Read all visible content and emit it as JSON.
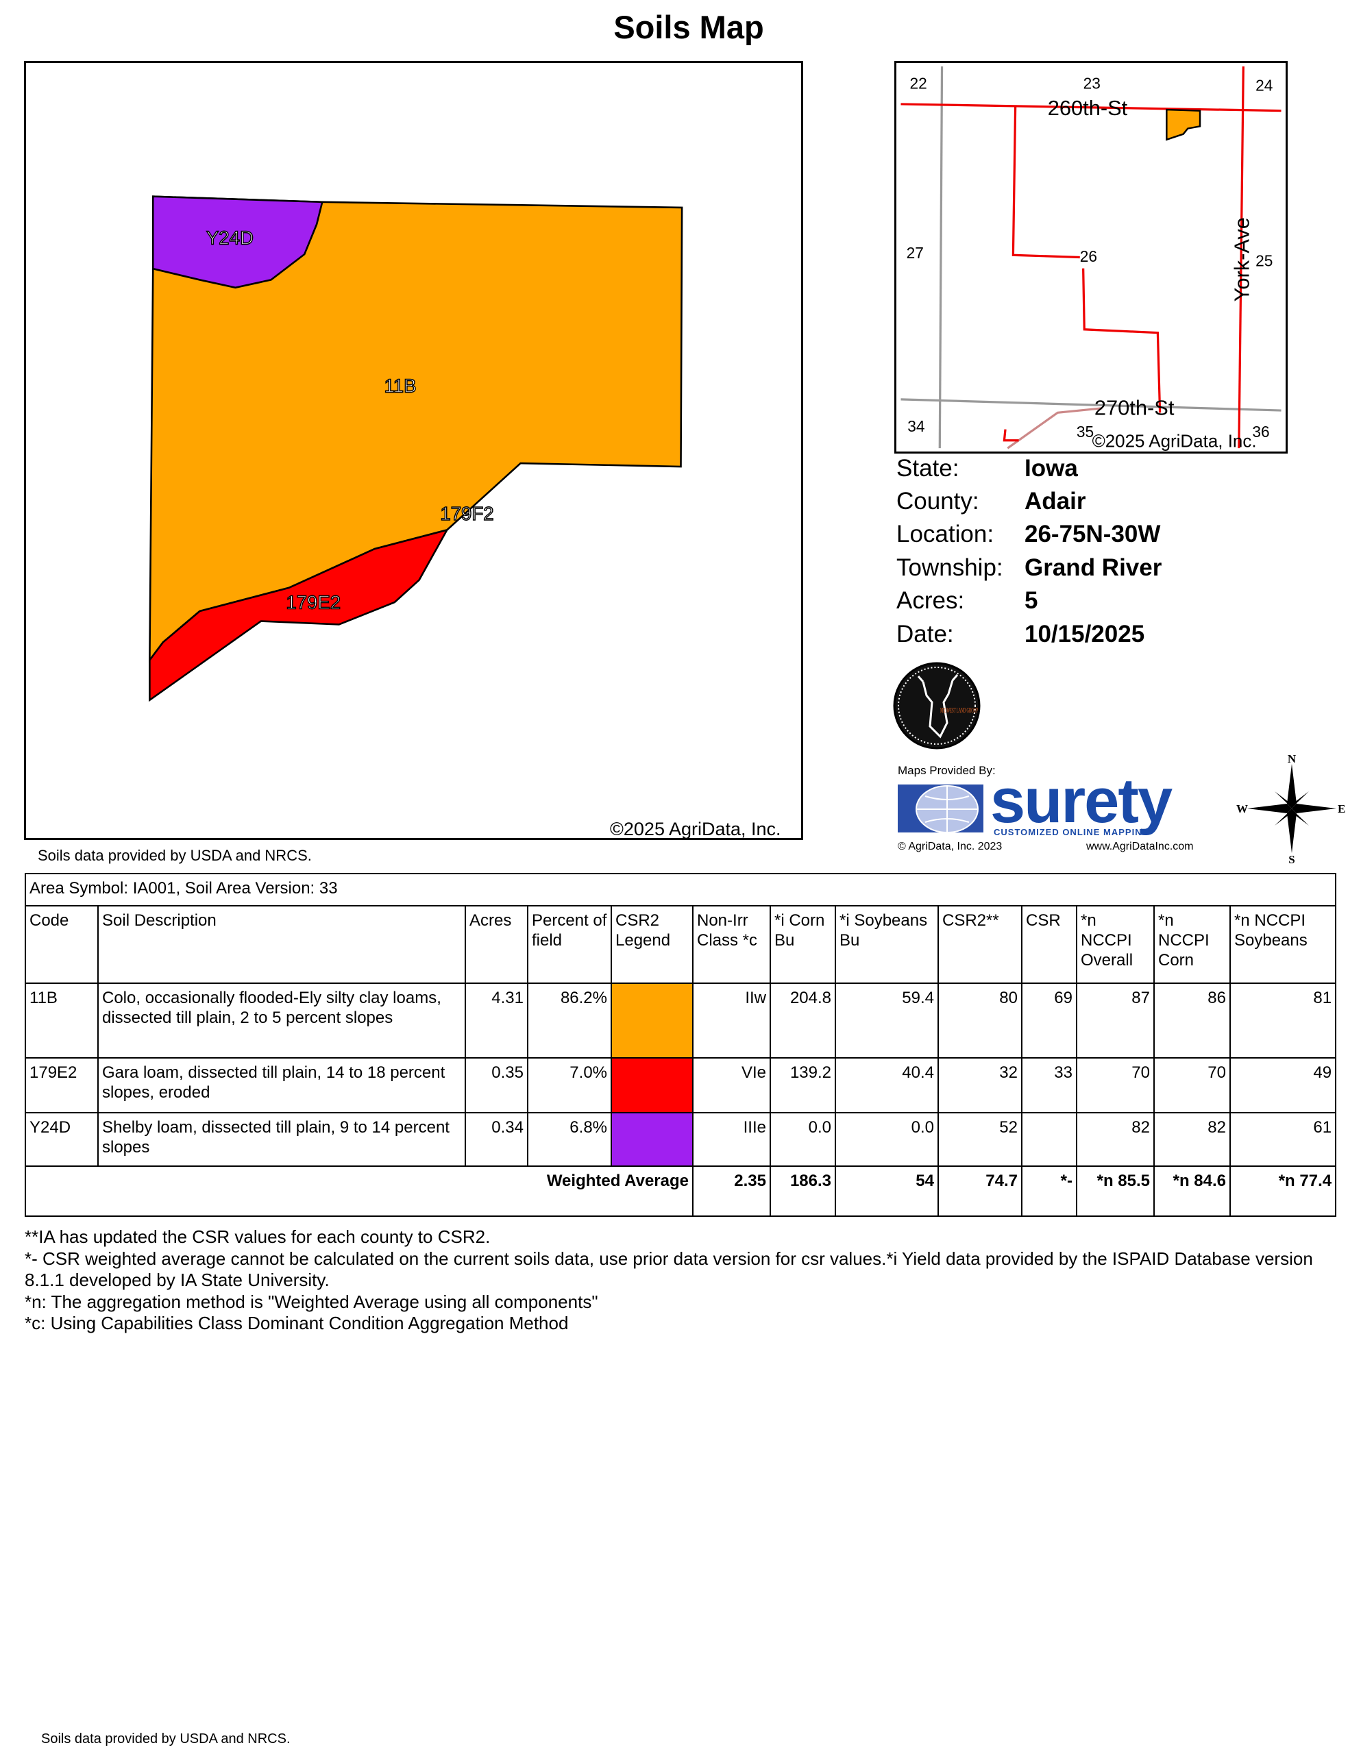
{
  "title": "Soils Map",
  "main_map": {
    "copyright": "©2025 AgriData, Inc.",
    "source_note": "Soils data provided by USDA and NRCS.",
    "labels": [
      "Y24D",
      "11B",
      "179F2",
      "179E2"
    ]
  },
  "inset_map": {
    "sections": [
      "22",
      "23",
      "24",
      "27",
      "26",
      "25",
      "34",
      "35",
      "36"
    ],
    "roads": [
      "260th-St",
      "270th-St",
      "York-Ave"
    ],
    "copyright": "©2025 AgriData, Inc."
  },
  "info": [
    {
      "label": "State:",
      "value": "Iowa"
    },
    {
      "label": "County:",
      "value": "Adair"
    },
    {
      "label": "Location:",
      "value": "26-75N-30W"
    },
    {
      "label": "Township:",
      "value": "Grand River"
    },
    {
      "label": "Acres:",
      "value": "5"
    },
    {
      "label": "Date:",
      "value": "10/15/2025"
    }
  ],
  "logos": {
    "midwest": "MIDWEST LAND GROUP",
    "provided_by": "Maps Provided By:",
    "surety": "surety",
    "surety_tagline": "CUSTOMIZED ONLINE MAPPING",
    "agridata_copy": "© AgriData, Inc. 2023",
    "agridata_url": "www.AgriDataInc.com"
  },
  "compass": {
    "n": "N",
    "s": "S",
    "e": "E",
    "w": "W"
  },
  "table": {
    "area_symbol": "Area Symbol: IA001, Soil Area Version: 33",
    "headers": [
      "Code",
      "Soil Description",
      "Acres",
      "Percent of field",
      "CSR2 Legend",
      "Non-Irr Class *c",
      "*i Corn Bu",
      "*i Soybeans Bu",
      "CSR2**",
      "CSR",
      "*n NCCPI Overall",
      "*n NCCPI Corn",
      "*n NCCPI Soybeans"
    ],
    "rows": [
      {
        "code": "11B",
        "desc": "Colo, occasionally flooded-Ely silty clay loams, dissected till plain, 2 to 5 percent slopes",
        "acres": "4.31",
        "pct": "86.2%",
        "color": "#FFA500",
        "class": "IIw",
        "corn": "204.8",
        "soy": "59.4",
        "csr2": "80",
        "csr": "69",
        "nccpi": "87",
        "nccpi_corn": "86",
        "nccpi_soy": "81"
      },
      {
        "code": "179E2",
        "desc": "Gara loam, dissected till plain, 14 to 18 percent slopes, eroded",
        "acres": "0.35",
        "pct": "7.0%",
        "color": "#FF0000",
        "class": "VIe",
        "corn": "139.2",
        "soy": "40.4",
        "csr2": "32",
        "csr": "33",
        "nccpi": "70",
        "nccpi_corn": "70",
        "nccpi_soy": "49"
      },
      {
        "code": "Y24D",
        "desc": "Shelby loam, dissected till plain, 9 to 14 percent slopes",
        "acres": "0.34",
        "pct": "6.8%",
        "color": "#A020F0",
        "class": "IIIe",
        "corn": "0.0",
        "soy": "0.0",
        "csr2": "52",
        "csr": "",
        "nccpi": "82",
        "nccpi_corn": "82",
        "nccpi_soy": "61"
      }
    ],
    "weighted": {
      "label": "Weighted Average",
      "class": "2.35",
      "corn": "186.3",
      "soy": "54",
      "csr2": "74.7",
      "csr": "*-",
      "nccpi": "*n 85.5",
      "nccpi_corn": "*n 84.6",
      "nccpi_soy": "*n 77.4"
    }
  },
  "notes": [
    "**IA has updated the CSR values for each county to CSR2.",
    "*- CSR weighted average cannot be calculated on the current soils data, use prior data version for csr values.*i Yield data provided by the ISPAID Database version 8.1.1 developed by IA State University.",
    "*n: The aggregation method is \"Weighted Average using all components\"",
    "*c: Using Capabilities Class Dominant Condition Aggregation Method"
  ],
  "footer_source": "Soils data provided by USDA and NRCS."
}
